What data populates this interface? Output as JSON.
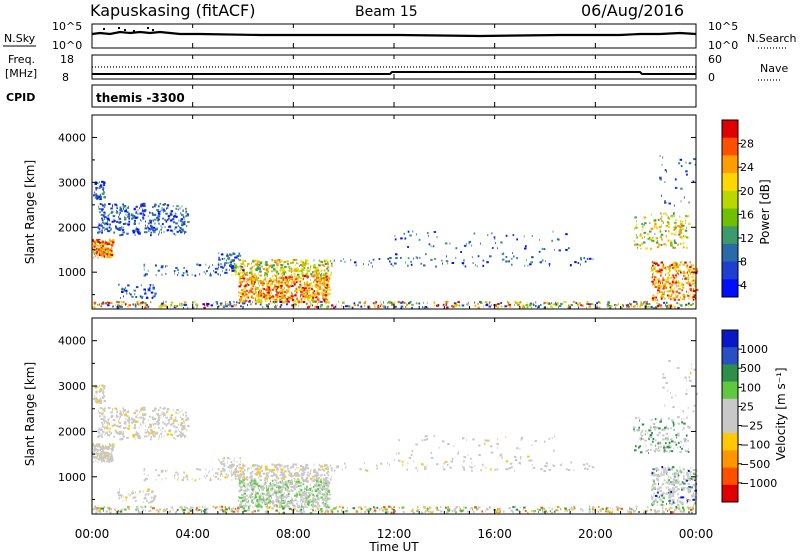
{
  "header": {
    "station": "Kapuskasing (fitACF)",
    "beam": "Beam 15",
    "date": "06/Aug/2016"
  },
  "sky_panel": {
    "left_label": "N.Sky",
    "right_label": "N.Search",
    "left_ticks": [
      "10^5",
      "10^0"
    ],
    "right_ticks": [
      "10^5",
      "10^0"
    ]
  },
  "freq_panel": {
    "left_label_1": "Freq.",
    "left_label_2": "[MHz]",
    "right_label": "Nave",
    "left_ticks": [
      "18",
      "8"
    ],
    "right_ticks": [
      "60",
      "0"
    ]
  },
  "cpid_panel": {
    "label": "CPID",
    "mode": "themis -3300"
  },
  "chart_data": [
    {
      "type": "heatmap",
      "name": "power",
      "ylabel": "Slant Range [km]",
      "xlabel": "Time UT",
      "yticks": [
        "4000",
        "3000",
        "2000",
        "1000"
      ],
      "ytick_values": [
        4000,
        3000,
        2000,
        1000
      ],
      "ylim": [
        180,
        4500
      ],
      "xlim_hours": [
        0,
        24
      ],
      "colorbar": {
        "label": "Power [dB]",
        "ticks": [
          "28",
          "24",
          "20",
          "16",
          "12",
          "8",
          "4"
        ],
        "colors": [
          "#e00000",
          "#ff5000",
          "#ff9e00",
          "#ffd800",
          "#b8d800",
          "#6fc000",
          "#3d9a6a",
          "#2a6aa8",
          "#1f3fd0",
          "#0010ff"
        ]
      }
    },
    {
      "type": "heatmap",
      "name": "velocity",
      "ylabel": "Slant Range [km]",
      "xlabel": "Time UT",
      "yticks": [
        "4000",
        "3000",
        "2000",
        "1000"
      ],
      "ytick_values": [
        4000,
        3000,
        2000,
        1000
      ],
      "ylim": [
        180,
        4500
      ],
      "xlim_hours": [
        0,
        24
      ],
      "colorbar": {
        "label": "Velocity [m s⁻¹]",
        "ticks": [
          "1000",
          "500",
          "100",
          "25",
          "−25",
          "−100",
          "−500",
          "−1000"
        ],
        "colors": [
          "#0818c8",
          "#2850c0",
          "#2e8e4a",
          "#5fc840",
          "#c8c8c8",
          "#c8c8c8",
          "#ffc800",
          "#ff9600",
          "#ff5000",
          "#e00000"
        ]
      }
    }
  ],
  "time_axis": {
    "labels": [
      "00:00",
      "04:00",
      "08:00",
      "12:00",
      "16:00",
      "20:00",
      "00:00"
    ],
    "title": "Time UT"
  }
}
